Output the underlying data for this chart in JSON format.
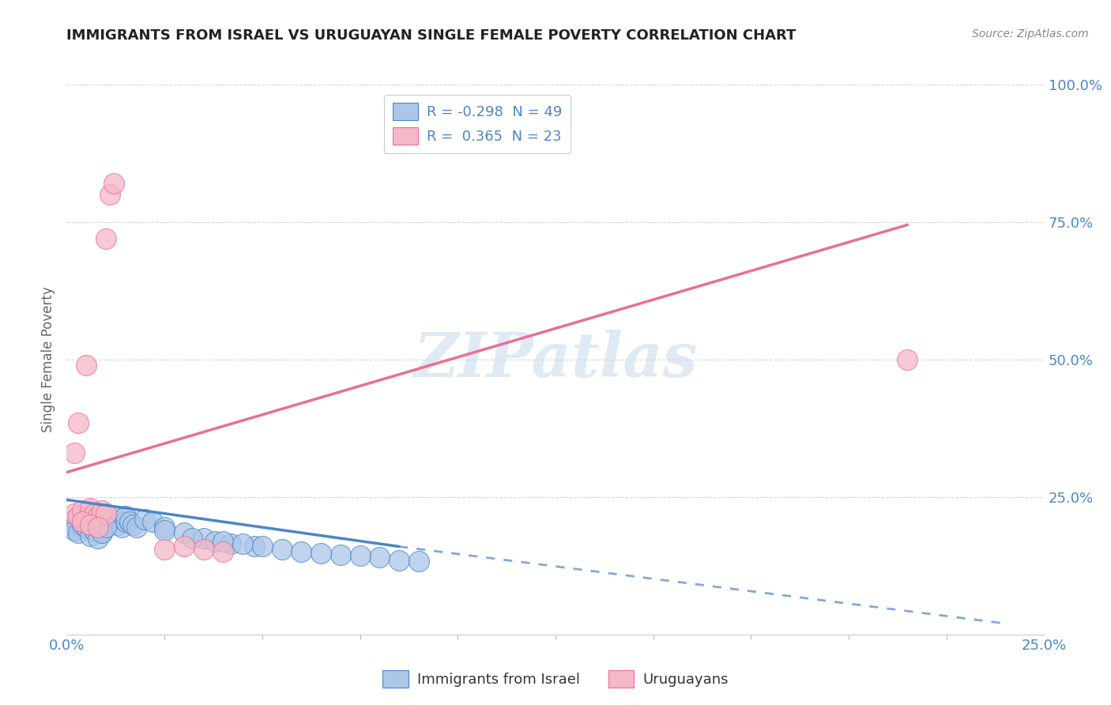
{
  "title": "IMMIGRANTS FROM ISRAEL VS URUGUAYAN SINGLE FEMALE POVERTY CORRELATION CHART",
  "source": "Source: ZipAtlas.com",
  "ylabel": "Single Female Poverty",
  "xlim": [
    0.0,
    0.25
  ],
  "ylim": [
    0.0,
    1.0
  ],
  "xtick_labels": [
    "0.0%",
    "25.0%"
  ],
  "ytick_labels": [
    "25.0%",
    "50.0%",
    "75.0%",
    "100.0%"
  ],
  "ytick_values": [
    0.25,
    0.5,
    0.75,
    1.0
  ],
  "xtick_values": [
    0.0,
    0.25
  ],
  "xtick_minor": [
    0.025,
    0.05,
    0.075,
    0.1,
    0.125,
    0.15,
    0.175,
    0.2,
    0.225
  ],
  "legend_text_1": "R = -0.298  N = 49",
  "legend_text_2": "R =  0.365  N = 23",
  "legend_label_1": "Immigrants from Israel",
  "legend_label_2": "Uruguayans",
  "color_blue": "#adc6e8",
  "color_pink": "#f5b8c8",
  "line_color_blue": "#4a86c8",
  "line_color_pink": "#e87090",
  "watermark": "ZIPatlas",
  "watermark_color": "#ccdcee",
  "blue_scatter": [
    [
      0.001,
      0.2
    ],
    [
      0.002,
      0.21
    ],
    [
      0.003,
      0.195
    ],
    [
      0.004,
      0.215
    ],
    [
      0.005,
      0.205
    ],
    [
      0.006,
      0.2
    ],
    [
      0.007,
      0.21
    ],
    [
      0.008,
      0.195
    ],
    [
      0.009,
      0.185
    ],
    [
      0.01,
      0.2
    ],
    [
      0.011,
      0.205
    ],
    [
      0.012,
      0.215
    ],
    [
      0.013,
      0.2
    ],
    [
      0.014,
      0.195
    ],
    [
      0.015,
      0.205
    ],
    [
      0.002,
      0.19
    ],
    [
      0.003,
      0.185
    ],
    [
      0.004,
      0.2
    ],
    [
      0.005,
      0.195
    ],
    [
      0.006,
      0.18
    ],
    [
      0.007,
      0.19
    ],
    [
      0.008,
      0.175
    ],
    [
      0.009,
      0.185
    ],
    [
      0.01,
      0.195
    ],
    [
      0.015,
      0.215
    ],
    [
      0.016,
      0.205
    ],
    [
      0.017,
      0.2
    ],
    [
      0.018,
      0.195
    ],
    [
      0.02,
      0.21
    ],
    [
      0.022,
      0.205
    ],
    [
      0.025,
      0.195
    ],
    [
      0.035,
      0.175
    ],
    [
      0.038,
      0.17
    ],
    [
      0.042,
      0.165
    ],
    [
      0.048,
      0.16
    ],
    [
      0.055,
      0.155
    ],
    [
      0.06,
      0.15
    ],
    [
      0.07,
      0.145
    ],
    [
      0.08,
      0.14
    ],
    [
      0.085,
      0.135
    ],
    [
      0.025,
      0.19
    ],
    [
      0.03,
      0.185
    ],
    [
      0.032,
      0.175
    ],
    [
      0.04,
      0.17
    ],
    [
      0.045,
      0.165
    ],
    [
      0.05,
      0.16
    ],
    [
      0.065,
      0.148
    ],
    [
      0.075,
      0.143
    ],
    [
      0.09,
      0.133
    ]
  ],
  "pink_scatter": [
    [
      0.002,
      0.22
    ],
    [
      0.003,
      0.215
    ],
    [
      0.004,
      0.225
    ],
    [
      0.005,
      0.21
    ],
    [
      0.006,
      0.23
    ],
    [
      0.007,
      0.22
    ],
    [
      0.008,
      0.215
    ],
    [
      0.009,
      0.225
    ],
    [
      0.01,
      0.22
    ],
    [
      0.002,
      0.33
    ],
    [
      0.003,
      0.385
    ],
    [
      0.011,
      0.8
    ],
    [
      0.012,
      0.82
    ],
    [
      0.01,
      0.72
    ],
    [
      0.005,
      0.49
    ],
    [
      0.025,
      0.155
    ],
    [
      0.03,
      0.16
    ],
    [
      0.035,
      0.155
    ],
    [
      0.04,
      0.15
    ],
    [
      0.215,
      0.5
    ],
    [
      0.004,
      0.205
    ],
    [
      0.006,
      0.2
    ],
    [
      0.008,
      0.195
    ]
  ],
  "blue_line_solid": [
    [
      0.0,
      0.245
    ],
    [
      0.085,
      0.16
    ]
  ],
  "blue_line_dash": [
    [
      0.085,
      0.16
    ],
    [
      0.24,
      0.02
    ]
  ],
  "pink_line": [
    [
      0.0,
      0.295
    ],
    [
      0.215,
      0.745
    ]
  ]
}
